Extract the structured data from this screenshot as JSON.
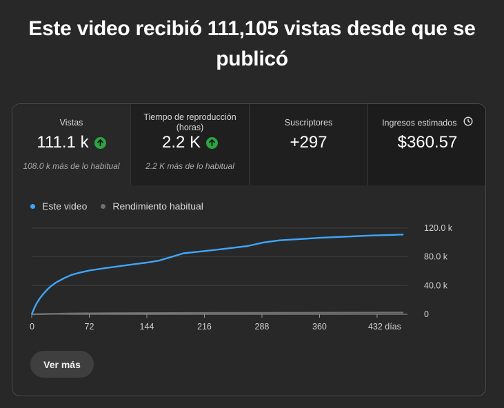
{
  "headline": "Este video recibió 111,105 vistas desde que se publicó",
  "metrics": [
    {
      "label": "Vistas",
      "value": "111.1 k",
      "trend": "up",
      "note": "108.0 k más de lo habitual"
    },
    {
      "label": "Tiempo de reproducción (horas)",
      "value": "2.2 K",
      "trend": "up",
      "note": "2.2 K más de lo habitual"
    },
    {
      "label": "Suscriptores",
      "value": "+297"
    },
    {
      "label": "Ingresos estimados",
      "value": "$360.57",
      "icon": "clock-icon"
    }
  ],
  "legend": [
    {
      "label": "Este video",
      "color": "#3ea6ff"
    },
    {
      "label": "Rendimiento habitual",
      "color": "#717171"
    }
  ],
  "chart_data": {
    "type": "line",
    "x_tick_labels": [
      "0",
      "72",
      "144",
      "216",
      "288",
      "360",
      "432 días"
    ],
    "y_tick_labels": [
      "120.0 k",
      "80.0 k",
      "40.0 k",
      "0"
    ],
    "xlim": [
      0,
      470
    ],
    "ylim": [
      0,
      120000
    ],
    "series": [
      {
        "name": "Este video",
        "color": "#3ea6ff",
        "x": [
          0,
          3,
          6,
          10,
          15,
          20,
          25,
          30,
          40,
          50,
          60,
          72,
          90,
          110,
          130,
          144,
          160,
          175,
          190,
          216,
          240,
          270,
          290,
          310,
          340,
          360,
          380,
          400,
          420,
          432,
          450,
          460,
          465
        ],
        "y": [
          0,
          8000,
          15000,
          22000,
          29000,
          35000,
          40000,
          44000,
          50000,
          55000,
          58000,
          61000,
          64000,
          67000,
          70000,
          72000,
          75000,
          80000,
          85000,
          88000,
          91000,
          95000,
          100000,
          103000,
          105000,
          106500,
          107500,
          108500,
          109500,
          110000,
          110500,
          111000,
          111105
        ]
      },
      {
        "name": "Rendimiento habitual",
        "color": "#717171",
        "x": [
          0,
          50,
          100,
          200,
          300,
          400,
          465
        ],
        "y": [
          0,
          1200,
          1500,
          1800,
          2000,
          2200,
          2300
        ]
      }
    ],
    "grid": true
  },
  "button_label": "Ver más"
}
